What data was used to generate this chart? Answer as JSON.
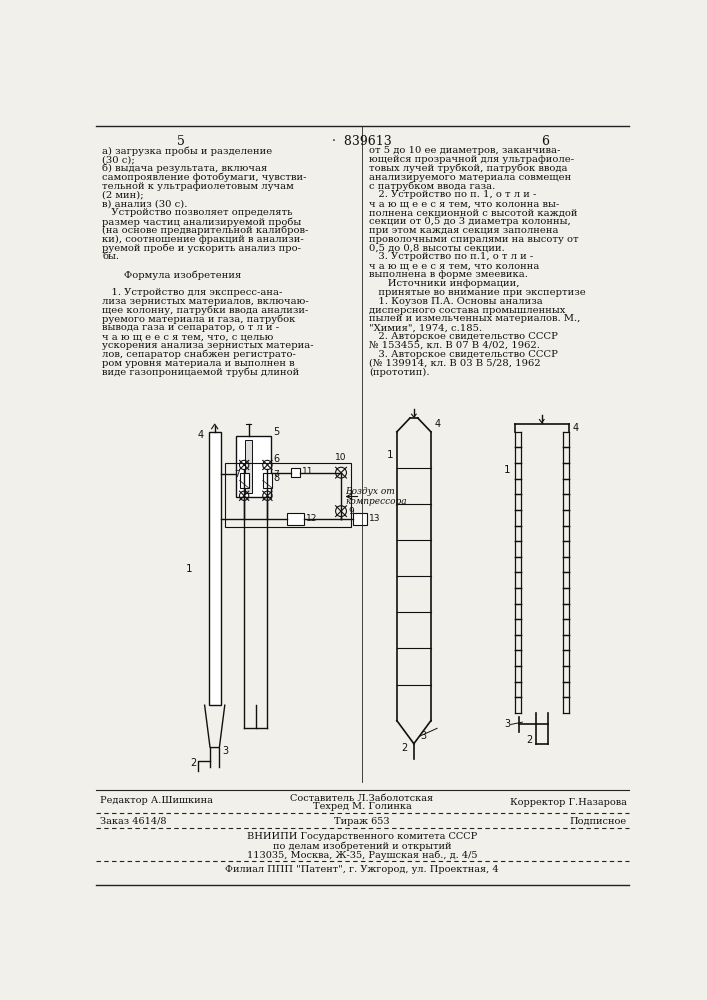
{
  "bg_color": "#f2f0eb",
  "page_num_left": "5",
  "patent_num": "839613",
  "page_num_right": "6",
  "left_col_lines": [
    "а) загрузка пробы и разделение",
    "(30 с);",
    "б) выдача результата, включая",
    "самопроявление фотобумаги, чувстви-",
    "тельной к ультрафиолетовым лучам",
    "(2 мин);",
    "в) анализ (30 с).",
    "   Устройство позволяет определять",
    "размер частиц анализируемой пробы",
    "(на основе предварительной калибров-",
    "ки), соотношение фракций в анализи-",
    "руемой пробе и ускорить анализ про-",
    "бы.",
    "",
    "       Формула изобретения",
    "",
    "   1. Устройство для экспресс-ана-",
    "лиза зернистых материалов, включаю-",
    "щее колонну, патрубки ввода анализи-",
    "руемого материала и газа, патрубок",
    "вывода газа и сепаратор, о т л и -",
    "ч а ю щ е е с я тем, что, с целью",
    "ускорения анализа зернистых материа-",
    "лов, сепаратор снабжен регистрато-",
    "ром уровня материала и выполнен в",
    "виде газопроницаемой трубы длиной"
  ],
  "right_col_lines": [
    "от 5 до 10 ее диаметров, заканчива-",
    "ющейся прозрачной для ультрафиоле-",
    "товых лучей трубкой, патрубок ввода",
    "анализируемого материала совмещен",
    "с патрубком ввода газа.",
    "   2. Устройство по п. 1, о т л и -",
    "ч а ю щ е е с я тем, что колонна вы-",
    "полнена секционной с высотой каждой",
    "секции от 0,5 до 3 диаметра колонны,",
    "при этом каждая секция заполнена",
    "проволочными спиралями на высоту от",
    "0,5 до 0,8 высоты секции.",
    "   3. Устройство по п.1, о т л и -",
    "ч а ю щ е е с я тем, что колонна",
    "выполнена в форме змеевика.",
    "      Источники информации,",
    "   принятые во внимание при экспертизе",
    "   1. Коузов П.А. Основы анализа",
    "дисперсного состава промышленных",
    "пылей и измельченных материалов. М.,",
    "\"Химия\", 1974, с.185.",
    "   2. Авторское свидетельство СССР",
    "№ 153455, кл. В 07 В 4/02, 1962.",
    "   3. Авторское свидетельство СССР",
    "(№ 139914, кл. В 03 В 5/28, 1962",
    "(прототип)."
  ],
  "footer_editor": "Редактор А.Шишкина",
  "footer_composer": "Составитель Л.Заболотская",
  "footer_techred": "Техред М. Голинка",
  "footer_corrector": "Корректор Г.Назарова",
  "footer_order": "Заказ 4614/8",
  "footer_print": "Тираж 653",
  "footer_sign": "Подписное",
  "footer_vniip": "ВНИИПИ Государственного комитета СССР",
  "footer_affairs": "по делам изобретений и открытий",
  "footer_address": "113035, Москва, Ж-35, Раушская наб., д. 4/5",
  "footer_branch": "Филиал ППП \"Патент\", г. Ужгород, ул. Проектная, 4",
  "text_color": "#111111",
  "line_color": "#222222"
}
